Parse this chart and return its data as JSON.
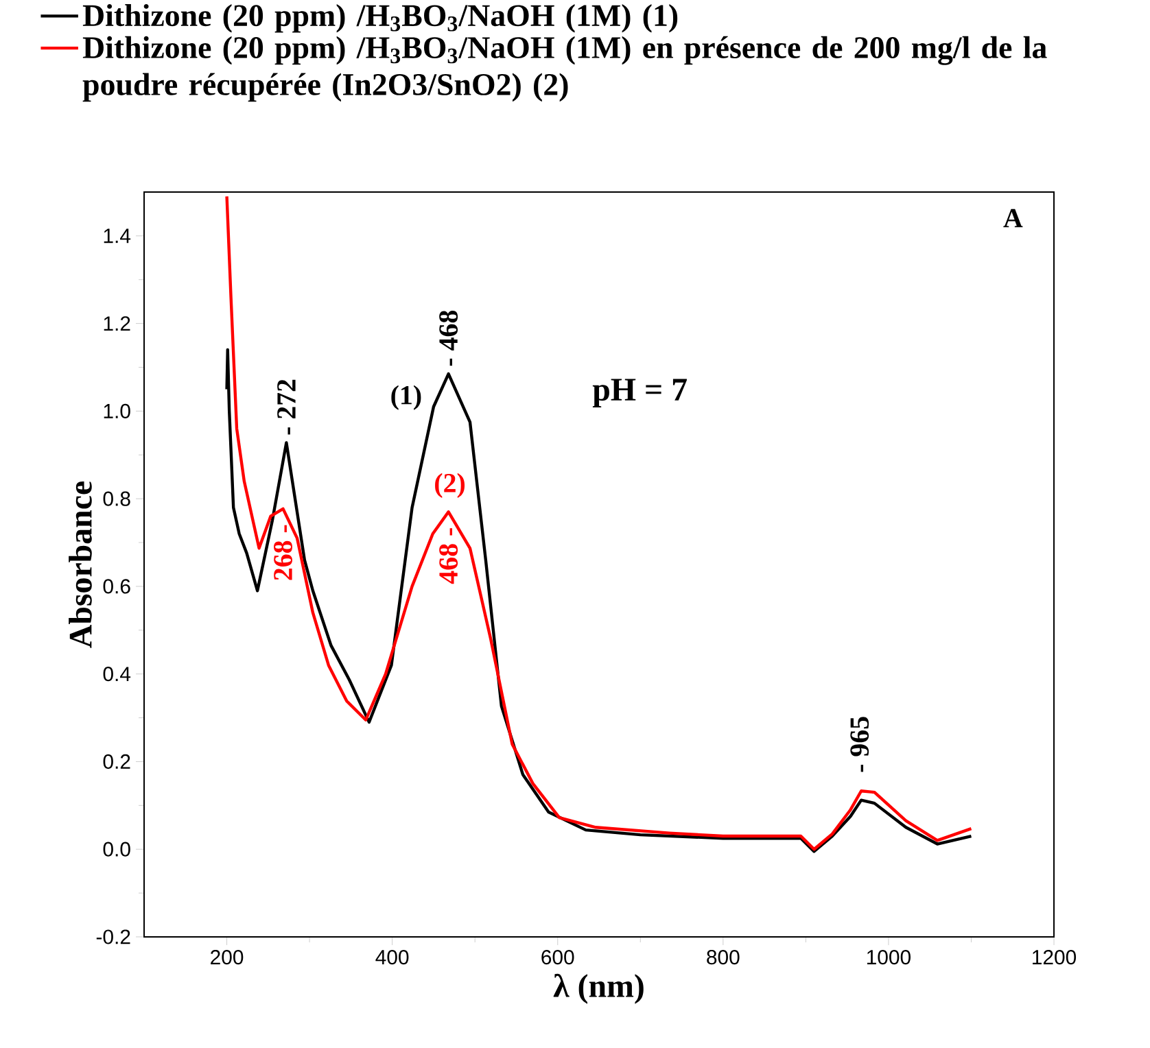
{
  "chart_data": {
    "type": "line",
    "xlabel": "λ (nm)",
    "ylabel": "Absorbance",
    "xlim": [
      100,
      1200
    ],
    "xticks": [
      200,
      400,
      600,
      800,
      1000,
      1200
    ],
    "ylim": [
      -0.2,
      1.5
    ],
    "yticks": [
      -0.2,
      {
        "value": 0,
        "label": "0.0"
      },
      0.2,
      0.4,
      0.6,
      0.8,
      {
        "value": 1,
        "label": "1.0"
      },
      1.2,
      1.4
    ],
    "legend": "top",
    "grid": false,
    "marker": "none",
    "line_style": "solid",
    "series": [
      {
        "name": "Dithizone (20 ppm) /H$_{3}$BO$_{3}$/NaOH (1M)                (1)",
        "color": "#000000",
        "x": [
          200,
          201,
          203,
          208,
          215,
          224,
          237,
          255,
          272,
          294,
          304,
          326,
          348,
          372,
          399,
          424,
          450,
          468,
          494,
          513,
          532,
          558,
          589,
          634,
          700,
          800,
          894,
          910,
          932,
          954,
          967,
          983,
          1021,
          1059,
          1100
        ],
        "values": [
          1.05,
          1.14,
          1.0,
          0.78,
          0.72,
          0.676,
          0.59,
          0.75,
          0.928,
          0.66,
          0.59,
          0.465,
          0.387,
          0.29,
          0.42,
          0.78,
          1.01,
          1.085,
          0.975,
          0.66,
          0.327,
          0.17,
          0.085,
          0.044,
          0.033,
          0.025,
          0.025,
          -0.005,
          0.03,
          0.075,
          0.112,
          0.105,
          0.05,
          0.012,
          0.03
        ]
      },
      {
        "name": "Dithizone (20 ppm) /H$_{3}$BO$_{3}$/NaOH (1M) en présence de 200 mg/l de la poudre récupérée (In2O3/SnO2)   (2)",
        "color": "#ff0000",
        "x": [
          200,
          205,
          212,
          221,
          239,
          253,
          268,
          285,
          304,
          323,
          345,
          368,
          392,
          424,
          449,
          468,
          494,
          519,
          545,
          570,
          602,
          646,
          735,
          800,
          894,
          910,
          932,
          954,
          967,
          983,
          1021,
          1059,
          1100
        ],
        "values": [
          1.49,
          1.26,
          0.96,
          0.84,
          0.687,
          0.76,
          0.777,
          0.71,
          0.54,
          0.42,
          0.338,
          0.295,
          0.4,
          0.6,
          0.72,
          0.77,
          0.687,
          0.48,
          0.24,
          0.15,
          0.072,
          0.05,
          0.037,
          0.03,
          0.03,
          0.0,
          0.035,
          0.09,
          0.133,
          0.13,
          0.065,
          0.02,
          0.047
        ]
      }
    ],
    "annotations": [
      {
        "text": "- 272",
        "x": 272,
        "y": 0.928
      },
      {
        "text": "- 468",
        "x": 468,
        "y": 1.085
      },
      {
        "text": "268 -",
        "x": 268,
        "y": 0.777
      },
      {
        "text": "468 -",
        "x": 468,
        "y": 0.77
      },
      {
        "text": "- 965",
        "x": 965,
        "y": 0.133
      },
      "(1)",
      "(2)",
      "pH = 7",
      "A"
    ]
  }
}
